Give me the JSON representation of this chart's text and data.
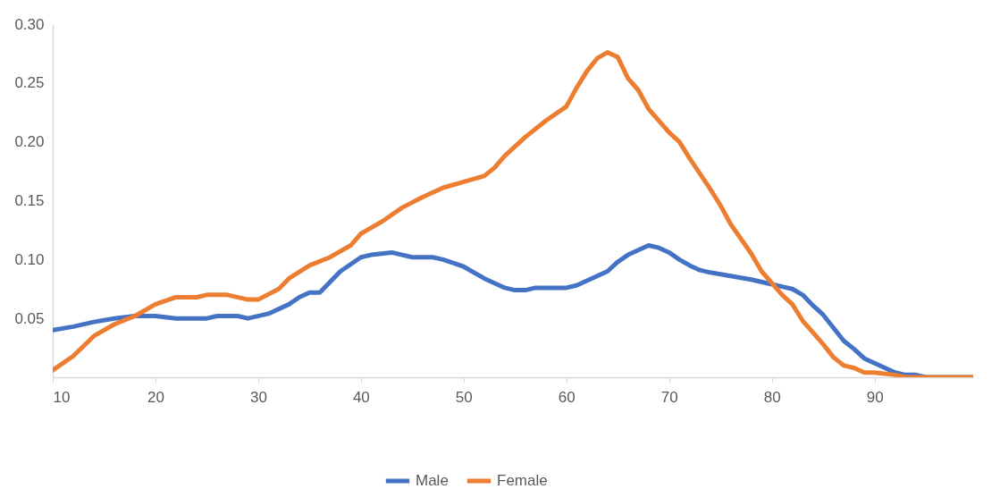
{
  "chart_data": {
    "type": "line",
    "xlim": [
      10,
      99.6
    ],
    "xticks": [
      10,
      20,
      30,
      40,
      50,
      60,
      70,
      80,
      90
    ],
    "ylim": [
      0,
      0.3
    ],
    "yticks": [
      {
        "value": 0.05,
        "label": "0.05"
      },
      {
        "value": 0.1,
        "label": "0.10"
      },
      {
        "value": 0.15,
        "label": "0.15"
      },
      {
        "value": 0.2,
        "label": "0.20"
      },
      {
        "value": 0.25,
        "label": "0.25"
      },
      {
        "value": 0.3,
        "label": "0.30"
      }
    ],
    "grid": false,
    "legend": "bottom",
    "marker": "none",
    "line_style": "solid",
    "series": [
      {
        "name": "Male",
        "color": "#4472c4",
        "x": [
          10,
          12,
          14,
          16,
          18,
          20,
          22,
          25,
          26,
          28,
          29,
          31,
          33,
          34,
          35,
          36,
          38,
          40,
          41,
          43,
          45,
          47,
          48,
          50,
          52,
          54,
          55,
          56,
          57,
          60,
          61,
          62,
          63,
          64,
          65,
          66,
          67,
          68,
          69,
          70,
          71,
          72,
          73,
          74,
          76,
          78,
          80,
          81,
          82,
          83,
          84,
          85,
          86,
          87,
          88,
          89,
          90,
          91,
          92,
          93,
          94,
          95,
          99.6
        ],
        "values": [
          0.04,
          0.043,
          0.047,
          0.05,
          0.052,
          0.052,
          0.05,
          0.05,
          0.052,
          0.052,
          0.05,
          0.054,
          0.062,
          0.068,
          0.072,
          0.072,
          0.09,
          0.102,
          0.104,
          0.106,
          0.102,
          0.102,
          0.1,
          0.094,
          0.084,
          0.076,
          0.074,
          0.074,
          0.076,
          0.076,
          0.078,
          0.082,
          0.086,
          0.09,
          0.098,
          0.104,
          0.108,
          0.112,
          0.11,
          0.106,
          0.1,
          0.095,
          0.091,
          0.089,
          0.086,
          0.083,
          0.079,
          0.077,
          0.075,
          0.07,
          0.061,
          0.053,
          0.042,
          0.031,
          0.024,
          0.016,
          0.012,
          0.008,
          0.004,
          0.002,
          0.002,
          0,
          0
        ]
      },
      {
        "name": "Female",
        "color": "#ed7d31",
        "x": [
          10,
          12,
          14,
          16,
          18,
          20,
          22,
          24,
          25,
          27,
          29,
          30,
          32,
          33,
          35,
          37,
          39,
          40,
          42,
          44,
          46,
          48,
          50,
          52,
          53,
          54,
          56,
          58,
          60,
          61,
          62,
          63,
          64,
          65,
          66,
          67,
          68,
          70,
          71,
          72,
          74,
          75,
          76,
          78,
          79,
          80,
          81,
          82,
          83,
          84,
          85,
          86,
          87,
          88,
          89,
          90,
          92,
          93,
          99.6
        ],
        "values": [
          0.006,
          0.018,
          0.035,
          0.045,
          0.052,
          0.062,
          0.068,
          0.068,
          0.07,
          0.07,
          0.066,
          0.066,
          0.075,
          0.084,
          0.095,
          0.102,
          0.112,
          0.122,
          0.132,
          0.144,
          0.153,
          0.161,
          0.166,
          0.171,
          0.178,
          0.188,
          0.204,
          0.218,
          0.23,
          0.246,
          0.26,
          0.271,
          0.276,
          0.272,
          0.254,
          0.244,
          0.228,
          0.208,
          0.2,
          0.186,
          0.16,
          0.146,
          0.13,
          0.105,
          0.09,
          0.08,
          0.07,
          0.062,
          0.048,
          0.038,
          0.028,
          0.017,
          0.01,
          0.008,
          0.004,
          0.004,
          0.002,
          0,
          0
        ]
      }
    ]
  }
}
